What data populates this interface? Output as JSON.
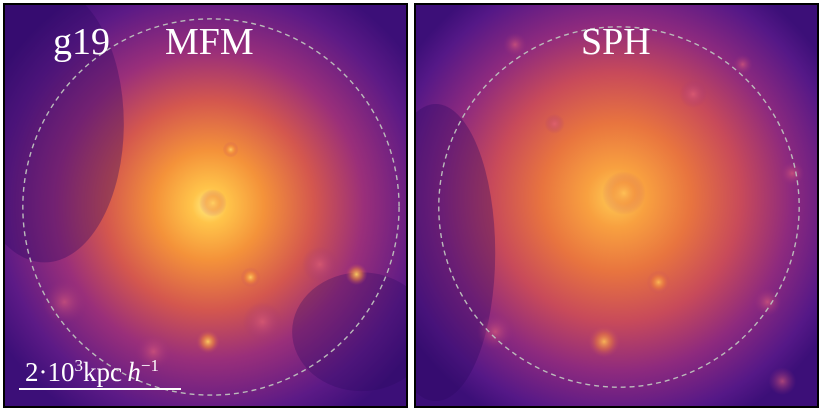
{
  "halo_id": "g19",
  "panels": [
    {
      "title": "MFM"
    },
    {
      "title": "SPH"
    }
  ],
  "scale_bar": {
    "prefix": "2·10",
    "exponent": "3",
    "unit": "kpc",
    "h": "h",
    "h_exponent": "−1"
  },
  "colors": {
    "background": "#3a0e74",
    "core": "#fde46a",
    "mid": "#f08a30",
    "outer": "#b8376b",
    "circle": "#bbbbbb"
  }
}
